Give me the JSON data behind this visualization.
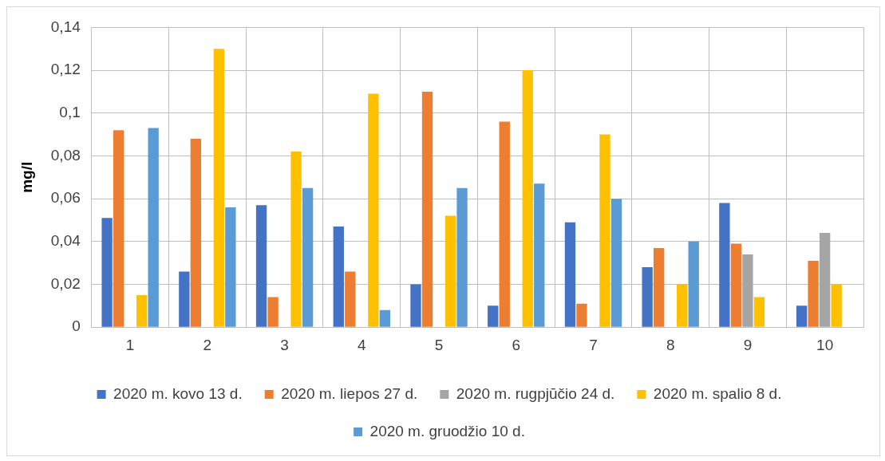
{
  "chart_data": {
    "type": "bar",
    "ylabel": "mg/l",
    "categories": [
      "1",
      "2",
      "3",
      "4",
      "5",
      "6",
      "7",
      "8",
      "9",
      "10"
    ],
    "series": [
      {
        "name": "2020 m. kovo 13 d.",
        "color": "#4472c4",
        "values": [
          0.051,
          0.026,
          0.057,
          0.047,
          0.02,
          0.01,
          0.049,
          0.028,
          0.058,
          0.01
        ]
      },
      {
        "name": "2020 m. liepos 27 d.",
        "color": "#ed7d31",
        "values": [
          0.092,
          0.088,
          0.014,
          0.026,
          0.11,
          0.096,
          0.011,
          0.037,
          0.039,
          0.031
        ]
      },
      {
        "name": "2020 m. rugpjūčio 24 d.",
        "color": "#a5a5a5",
        "values": [
          null,
          null,
          null,
          null,
          null,
          null,
          null,
          null,
          0.034,
          0.044
        ]
      },
      {
        "name": "2020 m. spalio 8 d.",
        "color": "#ffc000",
        "values": [
          0.015,
          0.13,
          0.082,
          0.109,
          0.052,
          0.12,
          0.09,
          0.02,
          0.014,
          0.02
        ]
      },
      {
        "name": "2020 m. gruodžio 10 d.",
        "color": "#5b9bd5",
        "values": [
          0.093,
          0.056,
          0.065,
          0.008,
          0.065,
          0.067,
          0.06,
          0.04,
          null,
          null
        ]
      }
    ],
    "ylim": [
      0,
      0.14
    ],
    "yticks": [
      0,
      {
        "value": 0.02,
        "label": "0,02"
      },
      {
        "value": 0.04,
        "label": "0,04"
      },
      {
        "value": 0.06,
        "label": "0,06"
      },
      {
        "value": 0.08,
        "label": "0,08"
      },
      {
        "value": 0.1,
        "label": "0,1"
      },
      {
        "value": 0.12,
        "label": "0,12"
      },
      {
        "value": 0.14,
        "label": "0,14"
      }
    ],
    "grid": true,
    "legend": "bottom"
  }
}
